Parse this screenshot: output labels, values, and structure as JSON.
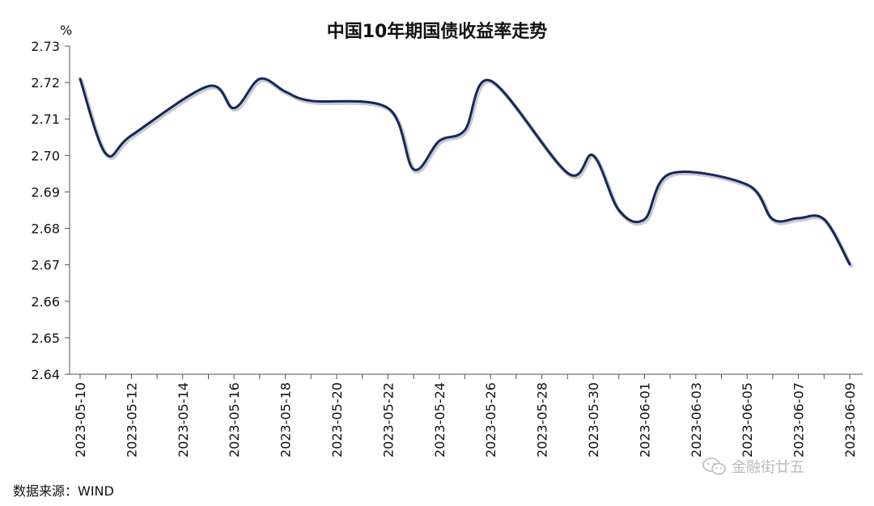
{
  "chart_data": {
    "type": "line",
    "title": "中国10年期国债收益率走势",
    "ylabel": "%",
    "ylim": [
      2.64,
      2.73
    ],
    "yticks": [
      "2.64",
      "2.65",
      "2.66",
      "2.67",
      "2.68",
      "2.69",
      "2.70",
      "2.71",
      "2.72",
      "2.73"
    ],
    "xticks": [
      "2023-05-10",
      "2023-05-12",
      "2023-05-14",
      "2023-05-16",
      "2023-05-18",
      "2023-05-20",
      "2023-05-22",
      "2023-05-24",
      "2023-05-26",
      "2023-05-28",
      "2023-05-30",
      "2023-06-01",
      "2023-06-03",
      "2023-06-05",
      "2023-06-07",
      "2023-06-09"
    ],
    "grid": false,
    "legend": "none",
    "series": [
      {
        "color": "#15285a",
        "points": [
          {
            "x": "2023-05-10",
            "y": 2.721
          },
          {
            "x": "2023-05-11",
            "y": 2.7005
          },
          {
            "x": "2023-05-12",
            "y": 2.7055
          },
          {
            "x": "2023-05-15",
            "y": 2.719
          },
          {
            "x": "2023-05-16",
            "y": 2.713
          },
          {
            "x": "2023-05-17",
            "y": 2.721
          },
          {
            "x": "2023-05-18",
            "y": 2.7175
          },
          {
            "x": "2023-05-19",
            "y": 2.715
          },
          {
            "x": "2023-05-22",
            "y": 2.713
          },
          {
            "x": "2023-05-23",
            "y": 2.6962
          },
          {
            "x": "2023-05-24",
            "y": 2.704
          },
          {
            "x": "2023-05-25",
            "y": 2.707
          },
          {
            "x": "2023-05-26",
            "y": 2.7205
          },
          {
            "x": "2023-05-29",
            "y": 2.6952
          },
          {
            "x": "2023-05-30",
            "y": 2.7
          },
          {
            "x": "2023-05-31",
            "y": 2.685
          },
          {
            "x": "2023-06-01",
            "y": 2.6825
          },
          {
            "x": "2023-06-02",
            "y": 2.695
          },
          {
            "x": "2023-06-05",
            "y": 2.692
          },
          {
            "x": "2023-06-06",
            "y": 2.6825
          },
          {
            "x": "2023-06-07",
            "y": 2.6828
          },
          {
            "x": "2023-06-08",
            "y": 2.6825
          },
          {
            "x": "2023-06-09",
            "y": 2.6702
          }
        ]
      }
    ]
  },
  "source": "数据来源：WIND",
  "watermark": "金融街廿五",
  "watermark_icon": "wechat-icon"
}
